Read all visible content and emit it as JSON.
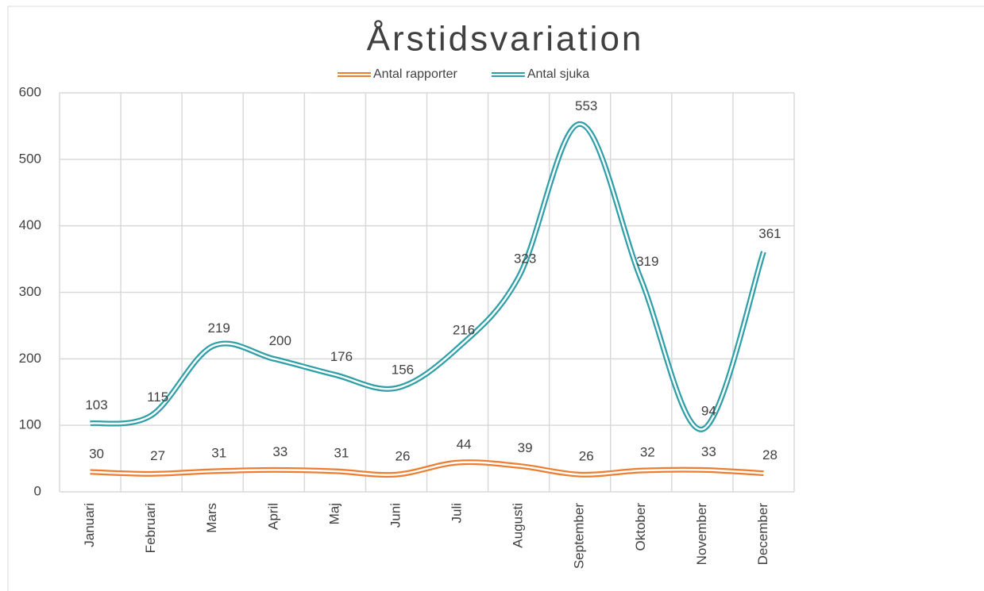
{
  "chart_data": {
    "type": "line",
    "title": "Årstidsvariation",
    "categories": [
      "Januari",
      "Februari",
      "Mars",
      "April",
      "Maj",
      "Juni",
      "Juli",
      "Augusti",
      "September",
      "Oktober",
      "November",
      "December"
    ],
    "series": [
      {
        "name": "Antal rapporter",
        "color": "#ed7d31",
        "values": [
          30,
          27,
          31,
          33,
          31,
          26,
          44,
          39,
          26,
          32,
          33,
          28
        ]
      },
      {
        "name": "Antal sjuka",
        "color": "#2f9fa7",
        "values": [
          103,
          115,
          219,
          200,
          176,
          156,
          216,
          323,
          553,
          319,
          94,
          361
        ]
      }
    ],
    "ylim": [
      0,
      600
    ],
    "yticks": [
      0,
      100,
      200,
      300,
      400,
      500,
      600
    ],
    "grid": true,
    "legend": "top",
    "smooth": true
  }
}
